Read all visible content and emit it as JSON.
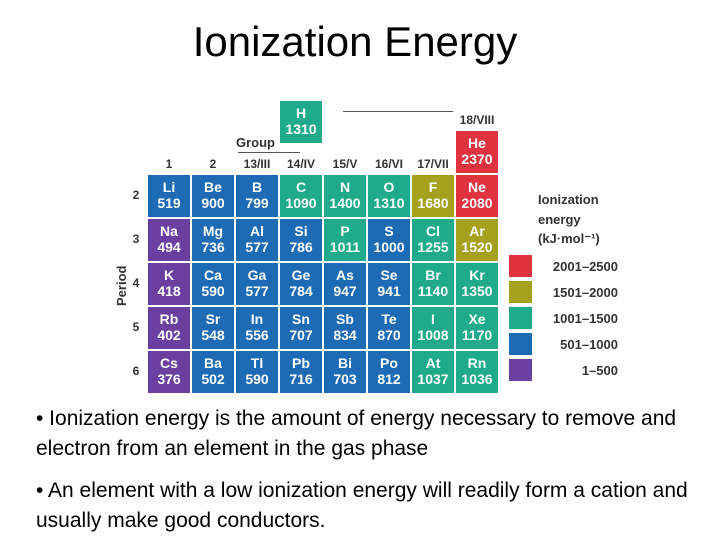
{
  "title": "Ionization Energy",
  "group_label": "Group",
  "group_headers": [
    "1",
    "2",
    "13/III",
    "14/IV",
    "15/V",
    "16/VI",
    "17/VII",
    "18/VIII"
  ],
  "period_label": "Period",
  "period_numbers": [
    "2",
    "3",
    "4",
    "5",
    "6"
  ],
  "colors": {
    "c1": "#6a3fa0",
    "c2": "#1e6bb5",
    "c3": "#1faa8c",
    "c4": "#a5a11f",
    "c5": "#e0323f"
  },
  "elements": [
    {
      "symbol": "H",
      "value": "1310",
      "col": 4,
      "row": 0,
      "level": 3
    },
    {
      "symbol": "He",
      "value": "2370",
      "col": 8,
      "row": 1,
      "level": 5
    },
    {
      "symbol": "Li",
      "value": "519",
      "col": 1,
      "row": 2,
      "level": 2
    },
    {
      "symbol": "Be",
      "value": "900",
      "col": 2,
      "row": 2,
      "level": 2
    },
    {
      "symbol": "B",
      "value": "799",
      "col": 3,
      "row": 2,
      "level": 2
    },
    {
      "symbol": "C",
      "value": "1090",
      "col": 4,
      "row": 2,
      "level": 3
    },
    {
      "symbol": "N",
      "value": "1400",
      "col": 5,
      "row": 2,
      "level": 3
    },
    {
      "symbol": "O",
      "value": "1310",
      "col": 6,
      "row": 2,
      "level": 3
    },
    {
      "symbol": "F",
      "value": "1680",
      "col": 7,
      "row": 2,
      "level": 4
    },
    {
      "symbol": "Ne",
      "value": "2080",
      "col": 8,
      "row": 2,
      "level": 5
    },
    {
      "symbol": "Na",
      "value": "494",
      "col": 1,
      "row": 3,
      "level": 1
    },
    {
      "symbol": "Mg",
      "value": "736",
      "col": 2,
      "row": 3,
      "level": 2
    },
    {
      "symbol": "Al",
      "value": "577",
      "col": 3,
      "row": 3,
      "level": 2
    },
    {
      "symbol": "Si",
      "value": "786",
      "col": 4,
      "row": 3,
      "level": 2
    },
    {
      "symbol": "P",
      "value": "1011",
      "col": 5,
      "row": 3,
      "level": 3
    },
    {
      "symbol": "S",
      "value": "1000",
      "col": 6,
      "row": 3,
      "level": 2
    },
    {
      "symbol": "Cl",
      "value": "1255",
      "col": 7,
      "row": 3,
      "level": 3
    },
    {
      "symbol": "Ar",
      "value": "1520",
      "col": 8,
      "row": 3,
      "level": 4
    },
    {
      "symbol": "K",
      "value": "418",
      "col": 1,
      "row": 4,
      "level": 1
    },
    {
      "symbol": "Ca",
      "value": "590",
      "col": 2,
      "row": 4,
      "level": 2
    },
    {
      "symbol": "Ga",
      "value": "577",
      "col": 3,
      "row": 4,
      "level": 2
    },
    {
      "symbol": "Ge",
      "value": "784",
      "col": 4,
      "row": 4,
      "level": 2
    },
    {
      "symbol": "As",
      "value": "947",
      "col": 5,
      "row": 4,
      "level": 2
    },
    {
      "symbol": "Se",
      "value": "941",
      "col": 6,
      "row": 4,
      "level": 2
    },
    {
      "symbol": "Br",
      "value": "1140",
      "col": 7,
      "row": 4,
      "level": 3
    },
    {
      "symbol": "Kr",
      "value": "1350",
      "col": 8,
      "row": 4,
      "level": 3
    },
    {
      "symbol": "Rb",
      "value": "402",
      "col": 1,
      "row": 5,
      "level": 1
    },
    {
      "symbol": "Sr",
      "value": "548",
      "col": 2,
      "row": 5,
      "level": 2
    },
    {
      "symbol": "In",
      "value": "556",
      "col": 3,
      "row": 5,
      "level": 2
    },
    {
      "symbol": "Sn",
      "value": "707",
      "col": 4,
      "row": 5,
      "level": 2
    },
    {
      "symbol": "Sb",
      "value": "834",
      "col": 5,
      "row": 5,
      "level": 2
    },
    {
      "symbol": "Te",
      "value": "870",
      "col": 6,
      "row": 5,
      "level": 2
    },
    {
      "symbol": "I",
      "value": "1008",
      "col": 7,
      "row": 5,
      "level": 3
    },
    {
      "symbol": "Xe",
      "value": "1170",
      "col": 8,
      "row": 5,
      "level": 3
    },
    {
      "symbol": "Cs",
      "value": "376",
      "col": 1,
      "row": 6,
      "level": 1
    },
    {
      "symbol": "Ba",
      "value": "502",
      "col": 2,
      "row": 6,
      "level": 2
    },
    {
      "symbol": "Tl",
      "value": "590",
      "col": 3,
      "row": 6,
      "level": 2
    },
    {
      "symbol": "Pb",
      "value": "716",
      "col": 4,
      "row": 6,
      "level": 2
    },
    {
      "symbol": "Bi",
      "value": "703",
      "col": 5,
      "row": 6,
      "level": 2
    },
    {
      "symbol": "Po",
      "value": "812",
      "col": 6,
      "row": 6,
      "level": 2
    },
    {
      "symbol": "At",
      "value": "1037",
      "col": 7,
      "row": 6,
      "level": 3
    },
    {
      "symbol": "Rn",
      "value": "1036",
      "col": 8,
      "row": 6,
      "level": 3
    }
  ],
  "legend": {
    "title_line1": "Ionization",
    "title_line2": "energy",
    "title_line3": "(kJ·mol⁻¹)",
    "items": [
      {
        "label": "2001–2500",
        "level": 5
      },
      {
        "label": "1501–2000",
        "level": 4
      },
      {
        "label": "1001–1500",
        "level": 3
      },
      {
        "label": "501–1000",
        "level": 2
      },
      {
        "label": "1–500",
        "level": 1
      }
    ]
  },
  "bullets": [
    "• Ionization energy is the amount of energy necessary to remove and electron from an element in the gas phase",
    "• An element with a low ionization energy will readily form a cation and usually make good conductors."
  ]
}
